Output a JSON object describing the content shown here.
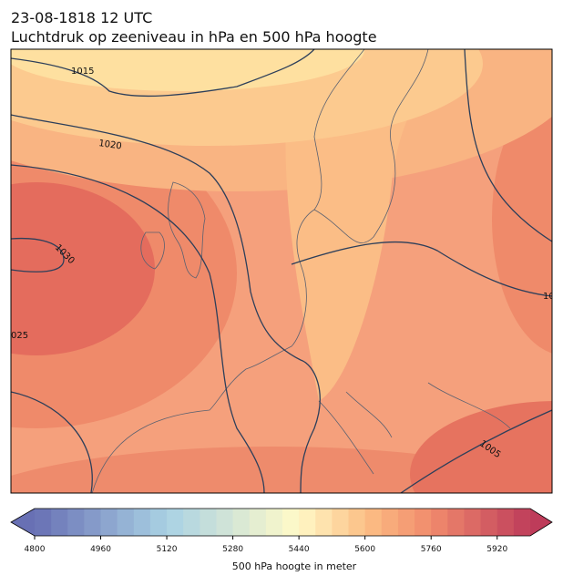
{
  "header": {
    "title": "23-08-1818 12 UTC",
    "subtitle": "Luchtdruk op zeeniveau in hPa en 500 hPa hoogte"
  },
  "map": {
    "contour_labels": [
      "1015",
      "1020",
      "1030",
      "025",
      "1005",
      "10"
    ]
  },
  "colorbar": {
    "label": "500 hPa hoogte in meter",
    "range": [
      4800,
      6000
    ],
    "ticks": [
      4800,
      4960,
      5120,
      5280,
      5440,
      5600,
      5760,
      5920
    ],
    "levels": 30
  }
}
